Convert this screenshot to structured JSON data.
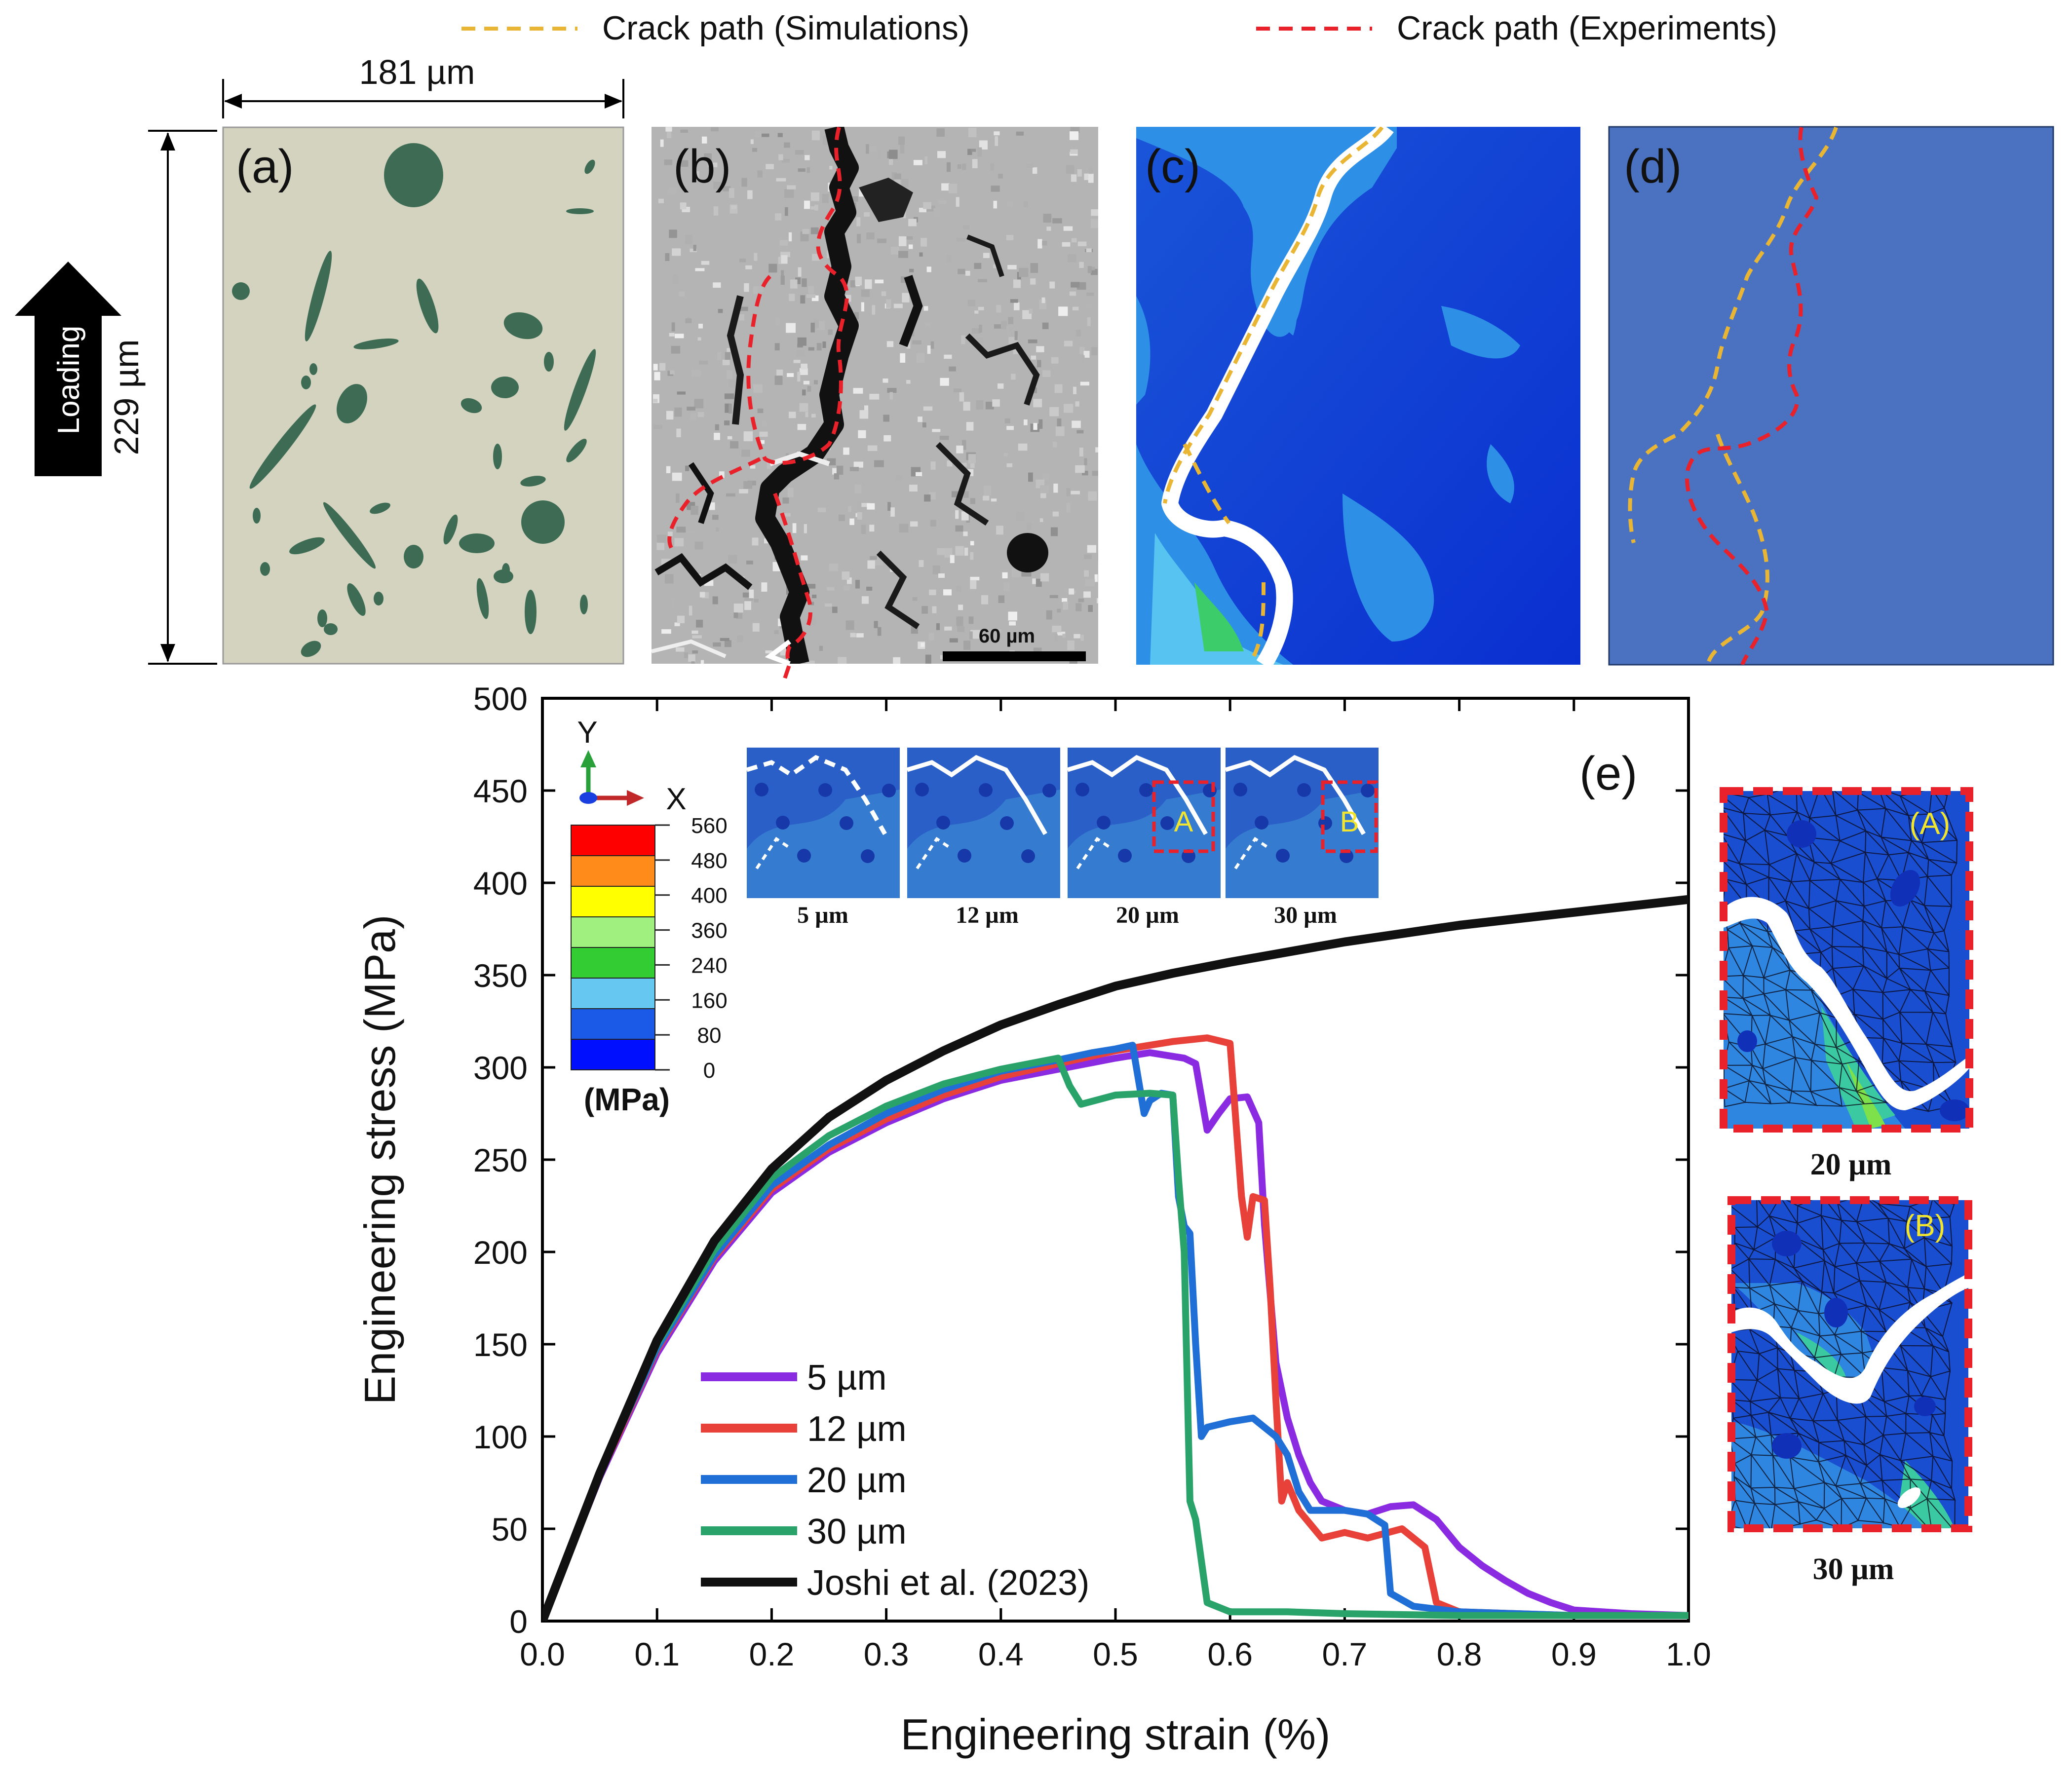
{
  "legend_top": {
    "sim_label": "Crack path (Simulations)",
    "exp_label": "Crack path (Experiments)",
    "sim_color": "#e9b534",
    "exp_color": "#e8212a"
  },
  "panels": {
    "a_label": "(a)",
    "b_label": "(b)",
    "c_label": "(c)",
    "d_label": "(d)",
    "e_label": "(e)",
    "width_dim": "181 µm",
    "height_dim": "229 µm",
    "loading": "Loading",
    "scale_bar": "60 µm",
    "matrix_color": "#d4d3bf",
    "particle_color": "#3d6b54",
    "fe_background": "#4a72c1"
  },
  "colorbar": {
    "axis_y": "Y",
    "axis_x": "X",
    "unit": "(MPa)",
    "ticks": [
      "560",
      "480",
      "400",
      "360",
      "240",
      "160",
      "80",
      "0"
    ],
    "colors": [
      "#ff0000",
      "#ff8c1a",
      "#ffff00",
      "#a0f080",
      "#33cc33",
      "#66c8f0",
      "#1a5ae6",
      "#0010ff"
    ]
  },
  "insets": {
    "labels": [
      "5 µm",
      "12 µm",
      "20 µm",
      "30 µm"
    ],
    "box_a": "A",
    "box_b": "B"
  },
  "zooms": {
    "a_tag": "(A)",
    "b_tag": "(B)",
    "a_caption": "20 µm",
    "b_caption": "30 µm"
  },
  "chart_data": {
    "type": "line",
    "title": "",
    "xlabel": "Engineering strain (%)",
    "ylabel": "Engineering stress (MPa)",
    "xlim": [
      0.0,
      1.0
    ],
    "ylim": [
      0,
      500
    ],
    "xticks": [
      "0.0",
      "0.1",
      "0.2",
      "0.3",
      "0.4",
      "0.5",
      "0.6",
      "0.7",
      "0.8",
      "0.9",
      "1.0"
    ],
    "yticks": [
      "0",
      "50",
      "100",
      "150",
      "200",
      "250",
      "300",
      "350",
      "400",
      "450",
      "500"
    ],
    "legend_position": "lower-left",
    "series": [
      {
        "name": "5 µm",
        "color": "#8a2be2",
        "x": [
          0,
          0.05,
          0.1,
          0.15,
          0.2,
          0.25,
          0.3,
          0.35,
          0.4,
          0.45,
          0.5,
          0.53,
          0.55,
          0.56,
          0.57,
          0.58,
          0.59,
          0.6,
          0.615,
          0.625,
          0.63,
          0.64,
          0.65,
          0.66,
          0.67,
          0.68,
          0.7,
          0.72,
          0.74,
          0.76,
          0.78,
          0.8,
          0.82,
          0.84,
          0.86,
          0.88,
          0.9,
          0.95,
          1.0
        ],
        "y": [
          0,
          78,
          145,
          195,
          232,
          254,
          270,
          283,
          293,
          299,
          305,
          308,
          306,
          305,
          302,
          266,
          275,
          283,
          284,
          270,
          215,
          140,
          110,
          90,
          75,
          65,
          60,
          58,
          62,
          63,
          55,
          40,
          30,
          22,
          15,
          10,
          6,
          4,
          3
        ]
      },
      {
        "name": "12 µm",
        "color": "#e8413a",
        "x": [
          0,
          0.05,
          0.1,
          0.15,
          0.2,
          0.25,
          0.3,
          0.35,
          0.4,
          0.45,
          0.5,
          0.55,
          0.58,
          0.6,
          0.61,
          0.615,
          0.62,
          0.63,
          0.635,
          0.64,
          0.645,
          0.65,
          0.66,
          0.68,
          0.7,
          0.72,
          0.75,
          0.77,
          0.78,
          0.8,
          0.85,
          0.9,
          0.95,
          1.0
        ],
        "y": [
          0,
          79,
          147,
          197,
          234,
          256,
          272,
          285,
          295,
          302,
          309,
          314,
          316,
          313,
          230,
          208,
          230,
          228,
          180,
          120,
          65,
          75,
          60,
          45,
          48,
          45,
          50,
          40,
          10,
          5,
          4,
          3,
          3,
          3
        ]
      },
      {
        "name": "20 µm",
        "color": "#1f6fd6",
        "x": [
          0,
          0.05,
          0.1,
          0.15,
          0.2,
          0.25,
          0.3,
          0.35,
          0.4,
          0.45,
          0.48,
          0.5,
          0.515,
          0.525,
          0.53,
          0.54,
          0.55,
          0.555,
          0.56,
          0.565,
          0.57,
          0.575,
          0.58,
          0.6,
          0.62,
          0.64,
          0.65,
          0.66,
          0.67,
          0.7,
          0.72,
          0.735,
          0.74,
          0.76,
          0.8,
          0.85,
          0.9,
          1.0
        ],
        "y": [
          0,
          80,
          148,
          198,
          236,
          258,
          275,
          288,
          298,
          304,
          308,
          310,
          312,
          275,
          282,
          286,
          285,
          230,
          214,
          210,
          150,
          100,
          105,
          108,
          110,
          100,
          90,
          70,
          60,
          60,
          58,
          52,
          15,
          8,
          5,
          4,
          3,
          3
        ]
      },
      {
        "name": "30 µm",
        "color": "#2aa36a",
        "x": [
          0,
          0.05,
          0.1,
          0.15,
          0.2,
          0.25,
          0.3,
          0.35,
          0.4,
          0.45,
          0.46,
          0.47,
          0.5,
          0.53,
          0.55,
          0.555,
          0.56,
          0.565,
          0.57,
          0.58,
          0.6,
          0.65,
          0.7,
          0.8,
          0.9,
          1.0
        ],
        "y": [
          0,
          81,
          150,
          201,
          240,
          263,
          279,
          291,
          299,
          305,
          290,
          280,
          285,
          286,
          285,
          240,
          200,
          65,
          55,
          10,
          5,
          5,
          4,
          3,
          3,
          3
        ]
      },
      {
        "name": "Joshi et al. (2023)",
        "color": "#111111",
        "x": [
          0,
          0.05,
          0.1,
          0.15,
          0.2,
          0.25,
          0.3,
          0.35,
          0.4,
          0.45,
          0.5,
          0.55,
          0.6,
          0.7,
          0.8,
          0.9,
          1.0
        ],
        "y": [
          0,
          80,
          152,
          206,
          245,
          273,
          293,
          309,
          323,
          334,
          344,
          351,
          357,
          368,
          377,
          384,
          391
        ]
      }
    ]
  }
}
